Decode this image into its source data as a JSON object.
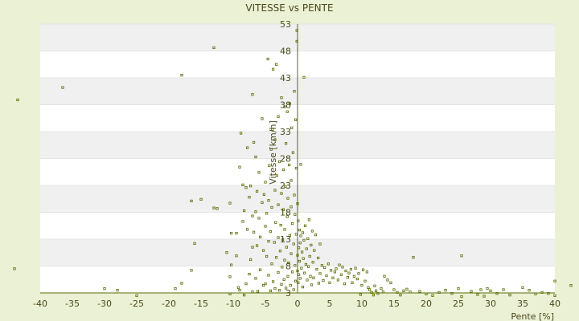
{
  "chart_data": {
    "type": "scatter",
    "title": "VITESSE vs PENTE",
    "xlabel": "Pente [%]",
    "ylabel": "Vitesse [km/h]",
    "xlim": [
      -40,
      40
    ],
    "ylim": [
      3,
      53
    ],
    "x_ticks": [
      -40,
      -35,
      -30,
      -25,
      -20,
      -15,
      -10,
      -5,
      0,
      5,
      10,
      15,
      20,
      25,
      30,
      35,
      40
    ],
    "y_ticks": [
      3,
      8,
      13,
      18,
      23,
      28,
      33,
      38,
      43,
      48,
      53
    ],
    "grid": true,
    "legend": "none",
    "colors": {
      "background": "#ebf1d4",
      "band_light": "#ffffff",
      "band_dark": "#f0f0f0",
      "marker": "#556b00",
      "axis": "#556b00"
    },
    "series": [
      {
        "points": [
          [
            -43.5,
            38.9
          ],
          [
            -44,
            7.5
          ],
          [
            -36.5,
            41.2
          ],
          [
            -30,
            3.8
          ],
          [
            -28,
            3.5
          ],
          [
            -25,
            2.5
          ],
          [
            -19,
            3.8
          ],
          [
            -18,
            4.8
          ],
          [
            -18,
            43.5
          ],
          [
            -16.5,
            7.2
          ],
          [
            -16,
            12.2
          ],
          [
            -16.5,
            20.1
          ],
          [
            -15,
            20.4
          ],
          [
            -13,
            18.8
          ],
          [
            -13,
            48.6
          ],
          [
            -12.5,
            18.7
          ],
          [
            -11,
            10.5
          ],
          [
            -10.5,
            2.8
          ],
          [
            -10.5,
            6
          ],
          [
            -10.3,
            14.1
          ],
          [
            -10.3,
            8.2
          ],
          [
            -10.5,
            19.7
          ],
          [
            -9.5,
            9.9
          ],
          [
            -9.5,
            14.1
          ],
          [
            -9.2,
            4
          ],
          [
            -9,
            3.5
          ],
          [
            -9,
            26.4
          ],
          [
            -8.8,
            32.7
          ],
          [
            -8.5,
            23.1
          ],
          [
            -8.5,
            16.3
          ],
          [
            -8.3,
            2.6
          ],
          [
            -8,
            4.7
          ],
          [
            -8.3,
            18.3
          ],
          [
            -8,
            22.6
          ],
          [
            -7.8,
            14.8
          ],
          [
            -7.8,
            30
          ],
          [
            -7.5,
            20.8
          ],
          [
            -7.5,
            6.5
          ],
          [
            -7.3,
            9.2
          ],
          [
            -7.3,
            22.9
          ],
          [
            -7,
            11.5
          ],
          [
            -7,
            17.3
          ],
          [
            -7,
            39.9
          ],
          [
            -7,
            3.2
          ],
          [
            -6.8,
            14.3
          ],
          [
            -6.8,
            31
          ],
          [
            -6.5,
            18.1
          ],
          [
            -6.5,
            28.3
          ],
          [
            -6.5,
            5.7
          ],
          [
            -6.3,
            21.9
          ],
          [
            -6.3,
            11.8
          ],
          [
            -6.2,
            3.3
          ],
          [
            -6,
            16.9
          ],
          [
            -6,
            25.4
          ],
          [
            -5.8,
            7.3
          ],
          [
            -5.8,
            13.4
          ],
          [
            -5.5,
            19.8
          ],
          [
            -5.5,
            35.4
          ],
          [
            -5.3,
            4.4
          ],
          [
            -5.3,
            10.9
          ],
          [
            -5.2,
            21.3
          ],
          [
            -5,
            15.4
          ],
          [
            -5,
            23.6
          ],
          [
            -5,
            4.7
          ],
          [
            -4.8,
            9.8
          ],
          [
            -4.8,
            17.8
          ],
          [
            -4.6,
            46.5
          ],
          [
            -4.5,
            6.3
          ],
          [
            -4.5,
            12.6
          ],
          [
            -4.5,
            20.2
          ],
          [
            -4.4,
            26.7
          ],
          [
            -4.2,
            3.4
          ],
          [
            -4.2,
            14.4
          ],
          [
            -4.1,
            29.7
          ],
          [
            -4,
            8.4
          ],
          [
            -4,
            18.9
          ],
          [
            -3.9,
            33.4
          ],
          [
            -3.8,
            44.6
          ],
          [
            -3.8,
            5.1
          ],
          [
            -3.6,
            12.4
          ],
          [
            -3.5,
            22.1
          ],
          [
            -3.5,
            31.5
          ],
          [
            -3.5,
            3.8
          ],
          [
            -3.4,
            16.1
          ],
          [
            -3.3,
            45.5
          ],
          [
            -3.3,
            9.6
          ],
          [
            -3.2,
            24.8
          ],
          [
            -3,
            6.8
          ],
          [
            -3,
            13.3
          ],
          [
            -3,
            19.4
          ],
          [
            -3,
            35.8
          ],
          [
            -2.8,
            3.5
          ],
          [
            -2.8,
            27.4
          ],
          [
            -2.7,
            10.8
          ],
          [
            -2.6,
            15.6
          ],
          [
            -2.5,
            21.5
          ],
          [
            -2.5,
            4.6
          ],
          [
            -2.5,
            39.3
          ],
          [
            -2.4,
            7.8
          ],
          [
            -2.3,
            12.9
          ],
          [
            -2.2,
            18.5
          ],
          [
            -2.2,
            25.9
          ],
          [
            -2.1,
            5.5
          ],
          [
            -2,
            37.6
          ],
          [
            -2,
            9.1
          ],
          [
            -2,
            14.8
          ],
          [
            -1.9,
            22.8
          ],
          [
            -1.8,
            30.8
          ],
          [
            -1.8,
            3.9
          ],
          [
            -1.7,
            11.5
          ],
          [
            -1.6,
            17.2
          ],
          [
            -1.6,
            36.7
          ],
          [
            -1.5,
            6.1
          ],
          [
            -1.5,
            20.6
          ],
          [
            -1.4,
            8.6
          ],
          [
            -1.3,
            26.8
          ],
          [
            -1.2,
            13.7
          ],
          [
            -1.2,
            38.2
          ],
          [
            -1.1,
            4.4
          ],
          [
            -1,
            19
          ],
          [
            -1,
            10.3
          ],
          [
            -1,
            23.9
          ],
          [
            -0.9,
            33.7
          ],
          [
            -0.8,
            6.9
          ],
          [
            -0.8,
            15.9
          ],
          [
            -0.7,
            29.1
          ],
          [
            -0.6,
            3.6
          ],
          [
            -0.6,
            12.1
          ],
          [
            -0.5,
            21.2
          ],
          [
            -0.5,
            40.5
          ],
          [
            -0.4,
            8.1
          ],
          [
            -0.4,
            17.6
          ],
          [
            -0.3,
            35.2
          ],
          [
            -0.3,
            5.2
          ],
          [
            -0.2,
            26.2
          ],
          [
            -0.2,
            13.9
          ],
          [
            -0.1,
            49.8
          ],
          [
            -0.1,
            51.8
          ],
          [
            0,
            10
          ],
          [
            0,
            7.1
          ],
          [
            0,
            19.6
          ],
          [
            0.1,
            4.9
          ],
          [
            0.1,
            16.4
          ],
          [
            0.2,
            11.4
          ],
          [
            0.2,
            6.4
          ],
          [
            0.3,
            14.7
          ],
          [
            0.3,
            8.9
          ],
          [
            0.4,
            5.7
          ],
          [
            0.4,
            12.3
          ],
          [
            0.5,
            26.9
          ],
          [
            0.5,
            13.6
          ],
          [
            0.6,
            7.6
          ],
          [
            0.7,
            10.6
          ],
          [
            0.8,
            14.2
          ],
          [
            0.8,
            4.1
          ],
          [
            0.9,
            9.4
          ],
          [
            1,
            43.1
          ],
          [
            1,
            12.8
          ],
          [
            1.1,
            6.7
          ],
          [
            1.2,
            15.5
          ],
          [
            1.3,
            8.3
          ],
          [
            1.4,
            11.2
          ],
          [
            1.5,
            5.4
          ],
          [
            1.6,
            13.1
          ],
          [
            1.7,
            7.9
          ],
          [
            1.8,
            16.6
          ],
          [
            1.9,
            9.8
          ],
          [
            2,
            6.1
          ],
          [
            2.1,
            11.9
          ],
          [
            2.2,
            4.5
          ],
          [
            2.3,
            14.5
          ],
          [
            2.4,
            8.7
          ],
          [
            2.5,
            5.8
          ],
          [
            2.6,
            10.9
          ],
          [
            2.8,
            13.8
          ],
          [
            3,
            7.4
          ],
          [
            3.2,
            9.5
          ],
          [
            3.3,
            4.8
          ],
          [
            3.5,
            6.6
          ],
          [
            3.5,
            12.1
          ],
          [
            3.8,
            8.1
          ],
          [
            4,
            5.3
          ],
          [
            4.2,
            7.7
          ],
          [
            4.5,
            6.2
          ],
          [
            4.8,
            8.4
          ],
          [
            5,
            4.9
          ],
          [
            5.2,
            7.2
          ],
          [
            5.5,
            5.8
          ],
          [
            5.8,
            6.9
          ],
          [
            6,
            7.5
          ],
          [
            6.3,
            5.4
          ],
          [
            6.5,
            8.2
          ],
          [
            6.8,
            6.4
          ],
          [
            7,
            7.8
          ],
          [
            7.3,
            4.7
          ],
          [
            7.5,
            7.1
          ],
          [
            7.8,
            5.9
          ],
          [
            8,
            6.7
          ],
          [
            8.3,
            7.4
          ],
          [
            8.5,
            4.9
          ],
          [
            8.8,
            6.1
          ],
          [
            9,
            7.6
          ],
          [
            9.3,
            5.6
          ],
          [
            9.5,
            6.6
          ],
          [
            9.8,
            2.7
          ],
          [
            10,
            4.4
          ],
          [
            10.2,
            7.3
          ],
          [
            10.5,
            5.2
          ],
          [
            10.8,
            6.9
          ],
          [
            11,
            4
          ],
          [
            11.2,
            3.6
          ],
          [
            11.5,
            3.1
          ],
          [
            11.8,
            2.6
          ],
          [
            12,
            4.3
          ],
          [
            12.2,
            3.4
          ],
          [
            12.5,
            2.9
          ],
          [
            13,
            3.8
          ],
          [
            13.3,
            3.2
          ],
          [
            13.5,
            6.1
          ],
          [
            14,
            5.4
          ],
          [
            14.5,
            4.9
          ],
          [
            15,
            3.6
          ],
          [
            15.5,
            3.1
          ],
          [
            16,
            2.6
          ],
          [
            16.5,
            3.4
          ],
          [
            17,
            3.7
          ],
          [
            17.5,
            3.2
          ],
          [
            18,
            9.6
          ],
          [
            19,
            3.3
          ],
          [
            20,
            2.8
          ],
          [
            21,
            2.5
          ],
          [
            22,
            3.1
          ],
          [
            23,
            3.5
          ],
          [
            24,
            2.9
          ],
          [
            25,
            3.8
          ],
          [
            25.5,
            2.3
          ],
          [
            25.5,
            9.9
          ],
          [
            27,
            3.3
          ],
          [
            28,
            2.7
          ],
          [
            28.5,
            3.6
          ],
          [
            29,
            2.4
          ],
          [
            29.5,
            3.8
          ],
          [
            30,
            3.4
          ],
          [
            31,
            2.9
          ],
          [
            32,
            3.6
          ],
          [
            33,
            2.6
          ],
          [
            35,
            4
          ],
          [
            36,
            3.5
          ],
          [
            37,
            2.8
          ],
          [
            38,
            3.1
          ],
          [
            39,
            2.9
          ],
          [
            40,
            2.5
          ],
          [
            40,
            5.2
          ],
          [
            42.5,
            4.4
          ]
        ]
      }
    ]
  }
}
